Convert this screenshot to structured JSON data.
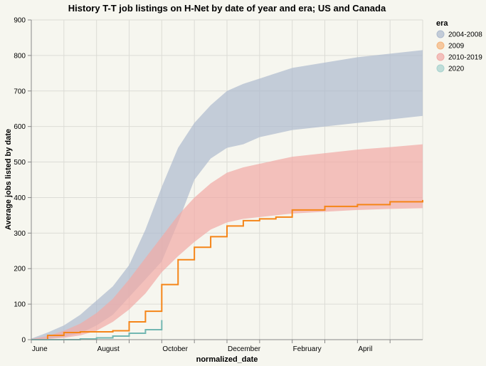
{
  "chart_data": {
    "type": "area",
    "title": "History T-T job listings on H-Net by date of year and era; US and Canada",
    "xlabel": "normalized_date",
    "ylabel": "Average jobs listed by date",
    "ylim": [
      0,
      900
    ],
    "yticks": [
      0,
      100,
      200,
      300,
      400,
      500,
      600,
      700,
      800,
      900
    ],
    "x_tick_labels": [
      "June",
      "",
      "August",
      "",
      "October",
      "",
      "December",
      "",
      "February",
      "",
      "April",
      ""
    ],
    "grid": true,
    "legend": {
      "title": "era",
      "position": "right",
      "entries": [
        {
          "label": "2004-2008",
          "color": "#aebbce"
        },
        {
          "label": "2009",
          "color": "#f5b57d"
        },
        {
          "label": "2010-2019",
          "color": "#f1aaa6"
        },
        {
          "label": "2020",
          "color": "#a8d3cf"
        }
      ]
    },
    "series": [
      {
        "name": "2004-2008",
        "kind": "band",
        "color": "#aebbce",
        "x": [
          0,
          0.5,
          1,
          1.5,
          2,
          2.5,
          3,
          3.5,
          4,
          4.5,
          5,
          5.5,
          6,
          6.5,
          7,
          7.5,
          8,
          9,
          10,
          11,
          12
        ],
        "low": [
          0,
          3,
          8,
          18,
          40,
          70,
          120,
          170,
          220,
          330,
          450,
          510,
          540,
          550,
          570,
          580,
          590,
          600,
          610,
          620,
          630
        ],
        "high": [
          3,
          20,
          40,
          70,
          110,
          150,
          210,
          310,
          430,
          540,
          610,
          660,
          700,
          720,
          735,
          750,
          765,
          780,
          795,
          805,
          815
        ]
      },
      {
        "name": "2010-2019",
        "kind": "band",
        "color": "#f1aaa6",
        "x": [
          0,
          0.5,
          1,
          1.5,
          2,
          2.5,
          3,
          3.5,
          4,
          4.5,
          5,
          5.5,
          6,
          6.5,
          7,
          7.5,
          8,
          9,
          10,
          11,
          12
        ],
        "low": [
          0,
          2,
          5,
          12,
          25,
          50,
          85,
          130,
          190,
          235,
          275,
          310,
          330,
          340,
          345,
          350,
          355,
          360,
          365,
          368,
          370
        ],
        "high": [
          2,
          10,
          25,
          45,
          75,
          115,
          170,
          230,
          290,
          350,
          400,
          440,
          470,
          485,
          495,
          505,
          515,
          525,
          535,
          542,
          550
        ]
      },
      {
        "name": "2009",
        "kind": "line",
        "color": "#f58518",
        "x": [
          0,
          0.5,
          1,
          1.5,
          2,
          2.5,
          3,
          3.5,
          4,
          4.5,
          5,
          5.5,
          6,
          6.5,
          7,
          7.5,
          8,
          9,
          10,
          11,
          12
        ],
        "values": [
          0,
          12,
          20,
          22,
          22,
          25,
          50,
          80,
          155,
          225,
          260,
          290,
          320,
          335,
          340,
          345,
          365,
          375,
          380,
          388,
          393
        ]
      },
      {
        "name": "2020",
        "kind": "line",
        "color": "#72b7b2",
        "x": [
          0,
          0.5,
          1,
          1.5,
          2,
          2.5,
          3,
          3.5,
          4
        ],
        "values": [
          0,
          0,
          0,
          2,
          5,
          10,
          18,
          28,
          55
        ]
      }
    ]
  }
}
